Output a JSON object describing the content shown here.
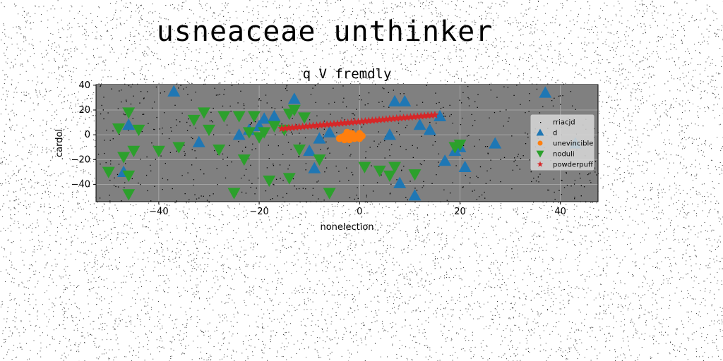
{
  "suptitle": "usneaceae unthinker",
  "chart_data": {
    "type": "scatter",
    "title": "q V fremdly",
    "xlabel": "nonelection",
    "ylabel": "cardol",
    "xlim": [
      -52.5,
      47.5
    ],
    "ylim": [
      -54,
      40.5
    ],
    "xticks": [
      -40,
      -20,
      0,
      20,
      40
    ],
    "yticks": [
      -40,
      -20,
      0,
      20,
      40
    ],
    "xtick_labels": [
      "−40",
      "−20",
      "0",
      "20",
      "40"
    ],
    "ytick_labels": [
      "−40",
      "−20",
      "0",
      "20",
      "40"
    ],
    "grid": true,
    "facecolor": "#808080",
    "legend_position": "center-right",
    "series": [
      {
        "name": "rriacjd",
        "marker": "dot",
        "color": "#000000",
        "seed": 7,
        "count": 650,
        "note_range_x": [
          -52.5,
          47.5
        ],
        "note_range_y": [
          -54,
          40.5
        ]
      },
      {
        "name": "d",
        "marker": "triangle-up",
        "color": "#1f77b4",
        "x": [
          -37,
          -32,
          -24,
          -22,
          -20,
          -19,
          -17,
          -13,
          -10,
          -9,
          -8,
          -6,
          6,
          7,
          8,
          9,
          11,
          12,
          14,
          16,
          17,
          19,
          20,
          21,
          27,
          37,
          43,
          -46,
          -47
        ],
        "y": [
          35,
          -6,
          0,
          4,
          7,
          13,
          15,
          29,
          -13,
          -27,
          -3,
          2,
          0,
          27,
          -39,
          27,
          -49,
          8,
          4,
          15,
          -21,
          -13,
          -10,
          -26,
          -7,
          34,
          -7,
          8,
          -30
        ]
      },
      {
        "name": "unevincible",
        "marker": "circle",
        "color": "#ff7f0e",
        "x": [
          -4,
          -3.5,
          -3,
          -2.5,
          -2,
          -1.5,
          -1,
          -0.5,
          0,
          0.5,
          -3,
          -2,
          -1,
          0,
          -2.5,
          -1.5
        ],
        "y": [
          -3,
          -2,
          -1,
          0,
          1,
          0,
          -1,
          -2,
          -3,
          -1,
          -4,
          -4,
          -3,
          1,
          2,
          1
        ]
      },
      {
        "name": "noduli",
        "marker": "triangle-down",
        "color": "#2ca02c",
        "x": [
          -50,
          -48,
          -47,
          -46,
          -46,
          -46,
          -45,
          -44,
          -40,
          -36,
          -33,
          -31,
          -30,
          -28,
          -27,
          -25,
          -24,
          -23,
          -22,
          -21,
          -20,
          -19,
          -18,
          -17,
          -15,
          -14,
          -14,
          -13,
          -12,
          -11,
          -8,
          -6,
          1,
          4,
          6,
          7,
          11,
          19,
          20
        ],
        "y": [
          -30,
          5,
          -18,
          -33,
          -48,
          18,
          -13,
          4,
          -13,
          -10,
          12,
          18,
          4,
          -12,
          15,
          -47,
          15,
          -20,
          2,
          15,
          -2,
          2,
          -37,
          7,
          4,
          -35,
          17,
          20,
          -12,
          14,
          -20,
          -47,
          -26,
          -29,
          -33,
          -26,
          -32,
          -10,
          -8
        ]
      },
      {
        "name": "powderpuff",
        "marker": "star",
        "color": "#d62728",
        "x_start": -15.5,
        "x_end": 15,
        "y_start": 5,
        "y_end": 16,
        "count": 45
      }
    ]
  }
}
